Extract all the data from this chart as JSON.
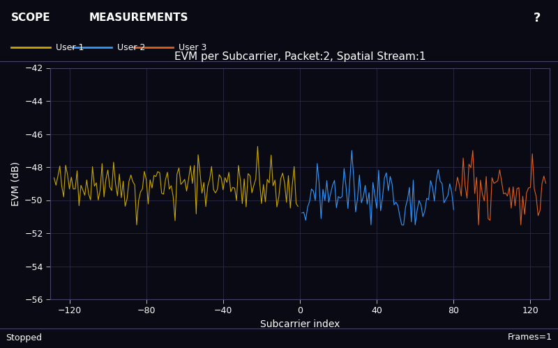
{
  "title": "EVM per Subcarrier, Packet:2, Spatial Stream:1",
  "xlabel": "Subcarrier index",
  "ylabel": "EVM (dB)",
  "xlim": [
    -130,
    130
  ],
  "ylim": [
    -56,
    -42
  ],
  "yticks": [
    -56,
    -54,
    -52,
    -50,
    -48,
    -46,
    -44,
    -42
  ],
  "xticks": [
    -120,
    -80,
    -40,
    0,
    40,
    80,
    120
  ],
  "bg_color": "#0a0a14",
  "plot_bg_color": "#0a0a14",
  "grid_color": "#2a2a45",
  "text_color": "#ffffff",
  "header_color": "#1a3a8a",
  "user1_color": "#c8a800",
  "user2_color": "#3399ff",
  "user3_color": "#e06020",
  "user1_x_start": -128,
  "user1_x_end": -1,
  "user2_x_start": 1,
  "user2_x_end": 80,
  "user3_x_start": 81,
  "user3_x_end": 128,
  "seed": 42,
  "header_text": "SCOPE",
  "header_text2": "MEASUREMENTS",
  "status_left": "Stopped",
  "status_right": "Frames=1",
  "legend_labels": [
    "User 1",
    "User 2",
    "User 3"
  ]
}
